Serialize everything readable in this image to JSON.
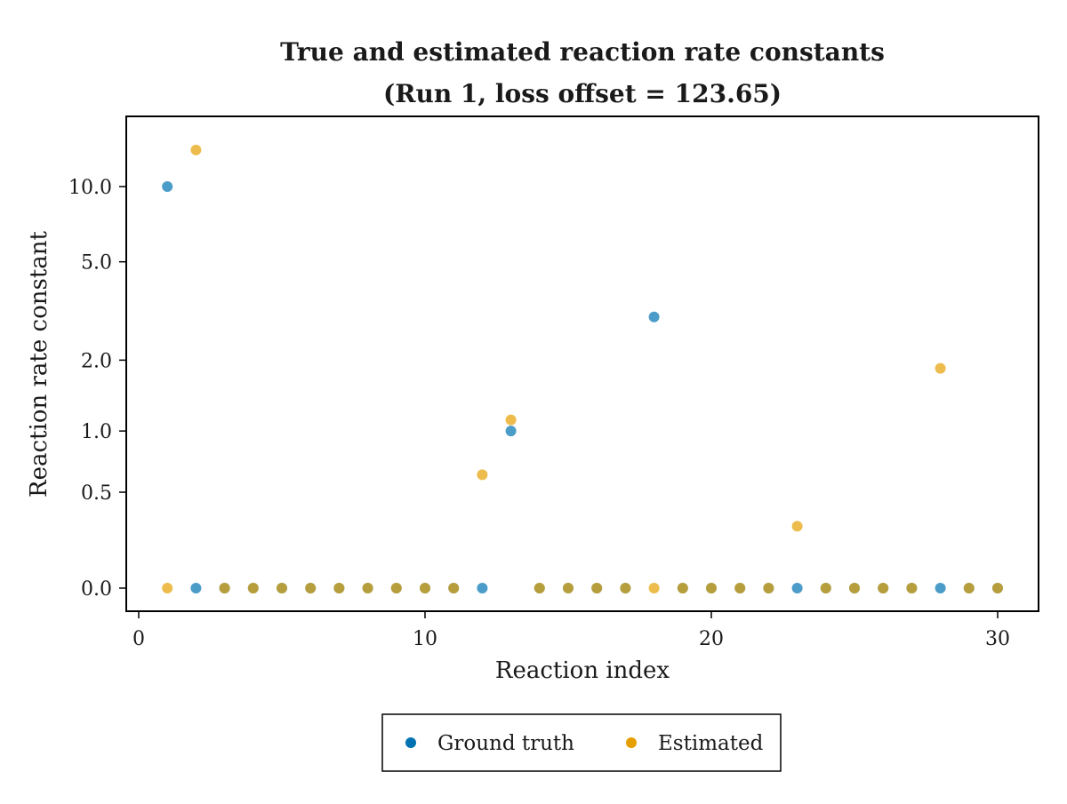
{
  "chart_data": {
    "type": "scatter",
    "title": "True and estimated reaction rate constants",
    "subtitle": "(Run 1, loss offset = 123.65)",
    "xlabel": "Reaction index",
    "ylabel": "Reaction rate constant",
    "xlim": [
      -0.5,
      31.5
    ],
    "x_ticks": [
      0,
      10,
      20,
      30
    ],
    "x_tick_labels": [
      "0",
      "10",
      "20",
      "30"
    ],
    "y_scale": "nonlinear (transformed)",
    "y_ticks": [
      0.0,
      0.5,
      1.0,
      2.0,
      5.0,
      10.0
    ],
    "y_tick_labels": [
      "0.0",
      "0.5",
      "1.0",
      "2.0",
      "5.0",
      "10.0"
    ],
    "grid": false,
    "legend_position": "bottom-center",
    "series": [
      {
        "name": "Ground truth",
        "color": "#0072B2",
        "x": [
          1,
          2,
          3,
          4,
          5,
          6,
          7,
          8,
          9,
          10,
          11,
          12,
          13,
          14,
          15,
          16,
          17,
          18,
          19,
          20,
          21,
          22,
          23,
          24,
          25,
          26,
          27,
          28,
          29,
          30
        ],
        "y": [
          10.0,
          0,
          0,
          0,
          0,
          0,
          0,
          0,
          0,
          0,
          0,
          0,
          1.0,
          0,
          0,
          0,
          0,
          3.0,
          0,
          0,
          0,
          0,
          0,
          0,
          0,
          0,
          0,
          0,
          0,
          0
        ]
      },
      {
        "name": "Estimated",
        "color": "#E69F00",
        "x": [
          1,
          2,
          3,
          4,
          5,
          6,
          7,
          8,
          9,
          10,
          11,
          12,
          13,
          14,
          15,
          16,
          17,
          18,
          19,
          20,
          21,
          22,
          23,
          24,
          25,
          26,
          27,
          28,
          29,
          30
        ],
        "y": [
          0,
          14.0,
          0,
          0,
          0,
          0,
          0,
          0,
          0,
          0,
          0,
          0.62,
          1.12,
          0,
          0,
          0,
          0,
          0,
          0,
          0,
          0,
          0,
          0.3,
          0,
          0,
          0,
          0,
          1.85,
          0,
          0
        ]
      }
    ]
  }
}
